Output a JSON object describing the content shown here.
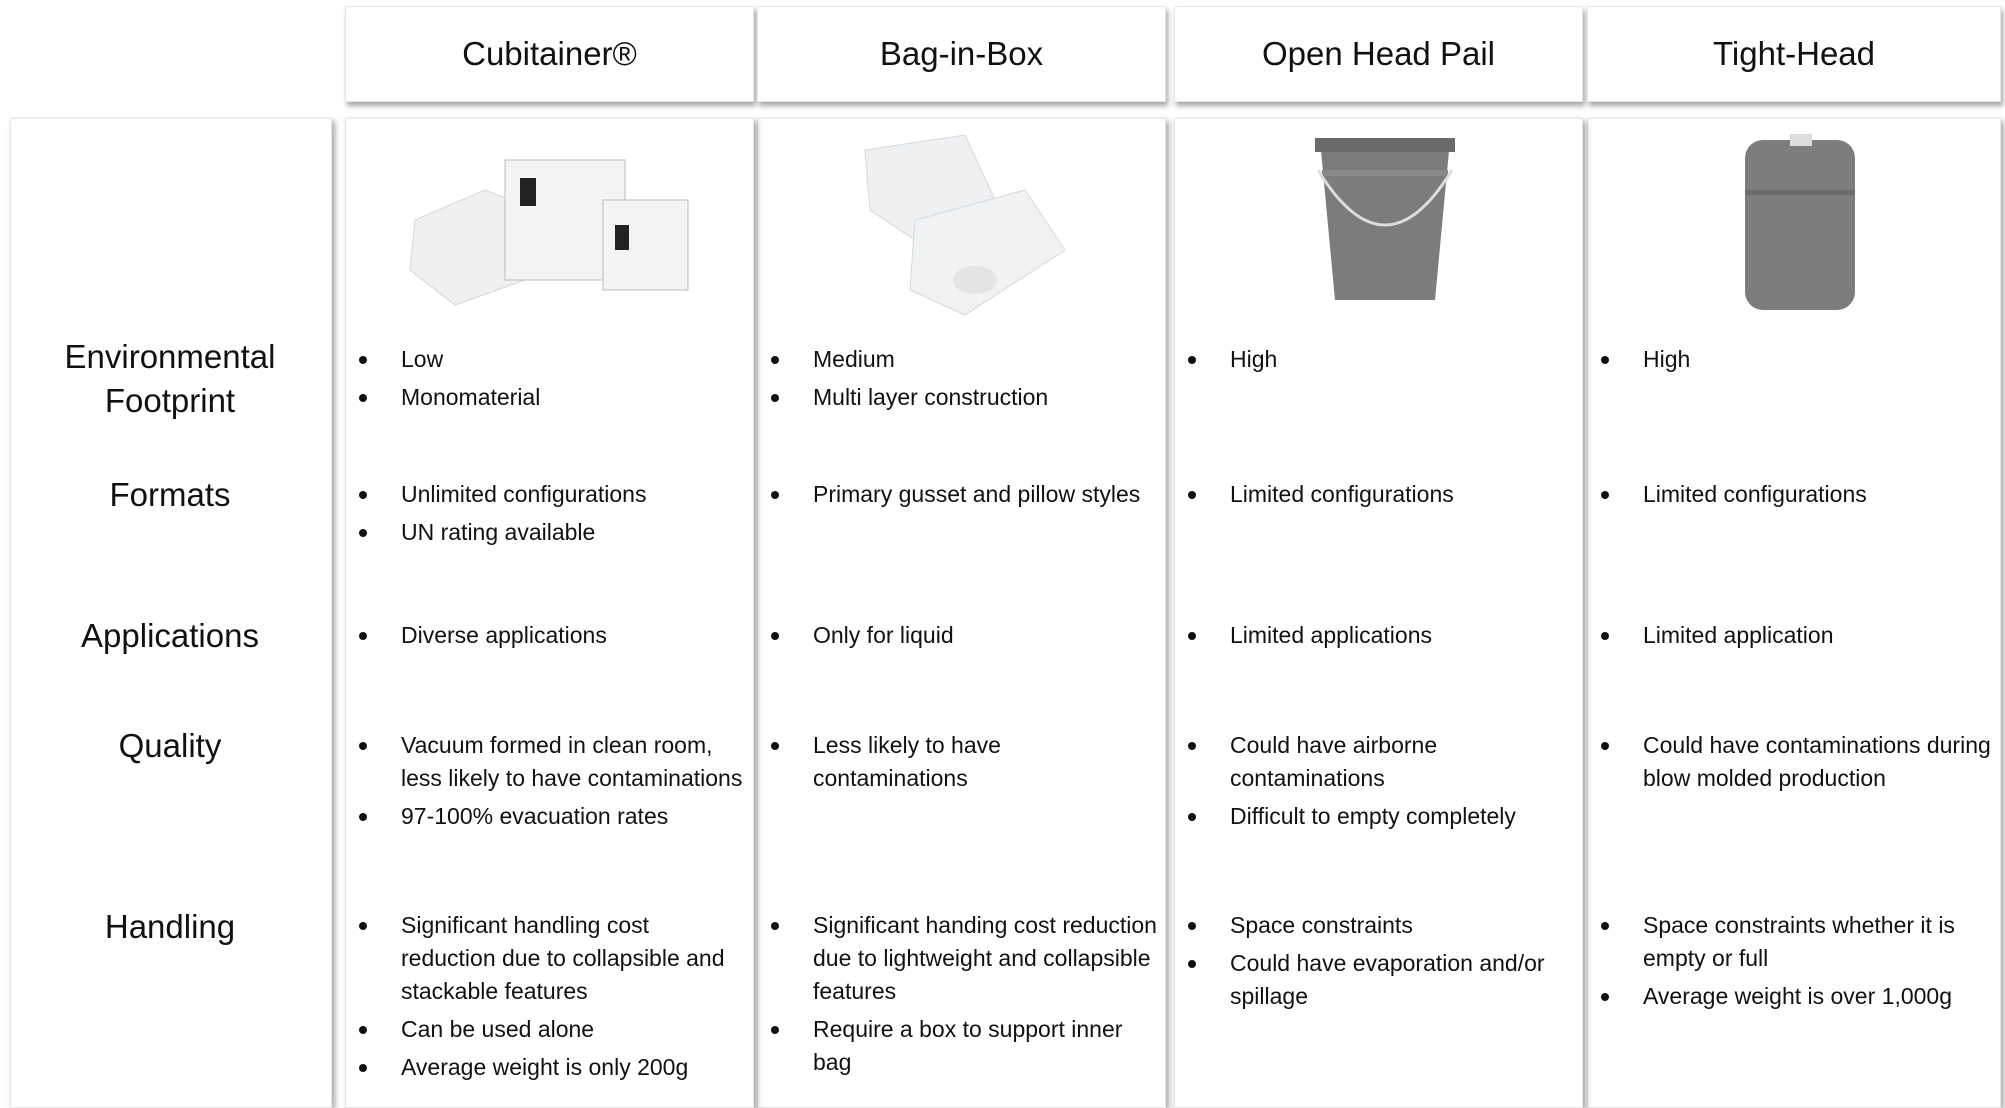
{
  "row_labels": [
    "Environmental Footprint",
    "Formats",
    "Applications",
    "Quality",
    "Handling"
  ],
  "columns": [
    {
      "title": "Cubitainer®",
      "rows": [
        [
          "Low",
          "Monomaterial"
        ],
        [
          "Unlimited configurations",
          "UN rating available"
        ],
        [
          "Diverse applications"
        ],
        [
          "Vacuum formed in clean room, less likely to have contaminations",
          "97-100% evacuation rates"
        ],
        [
          "Significant handling cost reduction due to collapsible and stackable features",
          "Can be used alone",
          "Average weight is only 200g"
        ]
      ]
    },
    {
      "title": "Bag-in-Box",
      "rows": [
        [
          "Medium",
          "Multi layer construction"
        ],
        [
          "Primary gusset and pillow styles"
        ],
        [
          "Only for liquid"
        ],
        [
          "Less likely to have contaminations"
        ],
        [
          "Significant handing cost reduction due to lightweight and collapsible features",
          "Require a box to support inner bag"
        ]
      ]
    },
    {
      "title": "Open Head Pail",
      "rows": [
        [
          "High"
        ],
        [
          "Limited configurations"
        ],
        [
          "Limited applications"
        ],
        [
          "Could have airborne contaminations",
          "Difficult to empty completely"
        ],
        [
          "Space constraints",
          "Could have evaporation and/or spillage"
        ]
      ]
    },
    {
      "title": "Tight-Head",
      "rows": [
        [
          "High"
        ],
        [
          "Limited configurations"
        ],
        [
          "Limited application"
        ],
        [
          "Could have contaminations during blow molded production"
        ],
        [
          "Space constraints whether it is empty or full",
          "Average weight is over 1,000g"
        ]
      ]
    }
  ]
}
